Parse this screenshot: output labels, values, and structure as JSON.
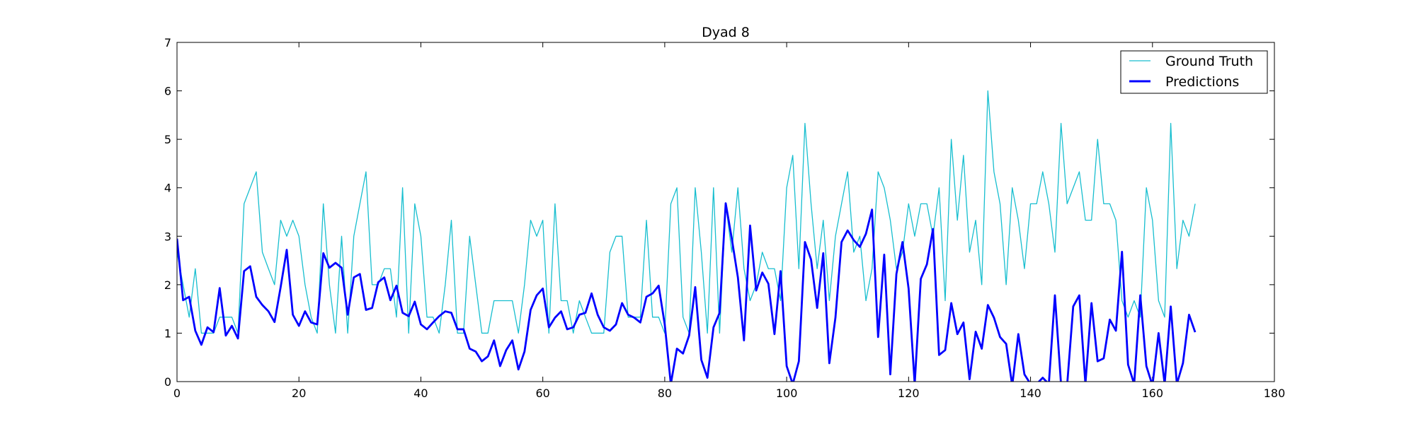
{
  "chart_data": {
    "type": "line",
    "title": "Dyad 8",
    "xlabel": "",
    "ylabel": "",
    "xlim": [
      0,
      180
    ],
    "ylim": [
      0,
      7
    ],
    "xticks": [
      "0",
      "20",
      "40",
      "60",
      "80",
      "100",
      "120",
      "140",
      "160",
      "180"
    ],
    "yticks": [
      "0",
      "1",
      "2",
      "3",
      "4",
      "5",
      "6",
      "7"
    ],
    "grid": false,
    "legend_position": "top-right",
    "series": [
      {
        "name": "Ground Truth",
        "color": "#17becf",
        "values": [
          2.67,
          2.0,
          1.33,
          2.33,
          1.0,
          1.0,
          1.0,
          1.33,
          1.33,
          1.33,
          1.0,
          3.67,
          4.0,
          4.33,
          2.67,
          2.33,
          2.0,
          3.33,
          3.0,
          3.33,
          3.0,
          2.0,
          1.33,
          1.0,
          3.67,
          2.0,
          1.0,
          3.0,
          1.0,
          3.0,
          3.67,
          4.33,
          2.0,
          2.0,
          2.33,
          2.33,
          1.33,
          4.0,
          1.0,
          3.67,
          3.0,
          1.33,
          1.33,
          1.0,
          2.0,
          3.33,
          1.0,
          1.0,
          3.0,
          2.0,
          1.0,
          1.0,
          1.67,
          1.67,
          1.67,
          1.67,
          1.0,
          2.0,
          3.33,
          3.0,
          3.33,
          1.0,
          3.67,
          1.67,
          1.67,
          1.0,
          1.67,
          1.33,
          1.0,
          1.0,
          1.0,
          2.67,
          3.0,
          3.0,
          1.33,
          1.33,
          1.33,
          3.33,
          1.33,
          1.33,
          1.0,
          3.67,
          4.0,
          1.33,
          1.0,
          4.0,
          2.67,
          1.0,
          4.0,
          1.0,
          3.67,
          2.67,
          4.0,
          2.33,
          1.67,
          2.0,
          2.67,
          2.33,
          2.33,
          1.67,
          4.0,
          4.67,
          2.33,
          5.33,
          3.67,
          2.33,
          3.33,
          1.67,
          3.0,
          3.67,
          4.33,
          2.67,
          3.0,
          1.67,
          2.33,
          4.33,
          4.0,
          3.33,
          2.33,
          2.67,
          3.67,
          3.0,
          3.67,
          3.67,
          3.0,
          4.0,
          1.67,
          5.0,
          3.33,
          4.67,
          2.67,
          3.33,
          2.0,
          6.0,
          4.33,
          3.67,
          2.0,
          4.0,
          3.33,
          2.33,
          3.67,
          3.67,
          4.33,
          3.67,
          2.67,
          5.33,
          3.67,
          4.0,
          4.33,
          3.33,
          3.33,
          5.0,
          3.67,
          3.67,
          3.33,
          1.67,
          1.33,
          1.67,
          1.33,
          4.0,
          3.33,
          1.67,
          1.33,
          5.33,
          2.33,
          3.33,
          3.0,
          3.67
        ]
      },
      {
        "name": "Predictions",
        "color": "#0000ff",
        "values": [
          2.95,
          1.68,
          1.75,
          1.05,
          0.76,
          1.12,
          1.02,
          1.93,
          0.95,
          1.15,
          0.89,
          2.28,
          2.38,
          1.75,
          1.58,
          1.45,
          1.23,
          1.95,
          2.72,
          1.38,
          1.15,
          1.45,
          1.22,
          1.18,
          2.65,
          2.35,
          2.45,
          2.35,
          1.38,
          2.15,
          2.22,
          1.48,
          1.52,
          2.05,
          2.15,
          1.68,
          1.98,
          1.42,
          1.35,
          1.65,
          1.18,
          1.08,
          1.22,
          1.35,
          1.45,
          1.42,
          1.08,
          1.08,
          0.68,
          0.62,
          0.42,
          0.52,
          0.85,
          0.32,
          0.65,
          0.85,
          0.25,
          0.62,
          1.48,
          1.78,
          1.92,
          1.12,
          1.32,
          1.45,
          1.08,
          1.12,
          1.38,
          1.42,
          1.82,
          1.38,
          1.12,
          1.05,
          1.18,
          1.62,
          1.38,
          1.32,
          1.22,
          1.75,
          1.82,
          1.98,
          1.18,
          -0.05,
          0.68,
          0.58,
          0.95,
          1.95,
          0.45,
          0.08,
          1.12,
          1.42,
          3.68,
          2.95,
          2.15,
          0.85,
          3.22,
          1.88,
          2.25,
          2.02,
          0.98,
          2.28,
          0.32,
          -0.05,
          0.42,
          2.88,
          2.52,
          1.52,
          2.65,
          0.38,
          1.32,
          2.88,
          3.12,
          2.92,
          2.78,
          3.05,
          3.55,
          0.92,
          2.62,
          0.15,
          2.22,
          2.88,
          1.92,
          -0.05,
          2.12,
          2.42,
          3.15,
          0.55,
          0.65,
          1.62,
          0.98,
          1.22,
          0.05,
          1.03,
          0.68,
          1.58,
          1.32,
          0.92,
          0.78,
          -0.08,
          0.98,
          0.15,
          -0.05,
          -0.05,
          0.08,
          -0.05,
          1.78,
          -0.05,
          -0.08,
          1.55,
          1.78,
          -0.05,
          1.62,
          0.42,
          0.48,
          1.28,
          1.05,
          2.68,
          0.35,
          -0.05,
          1.78,
          0.32,
          -0.08,
          1.0,
          -0.05,
          1.55,
          -0.05,
          0.38,
          1.38,
          1.02
        ]
      }
    ]
  }
}
